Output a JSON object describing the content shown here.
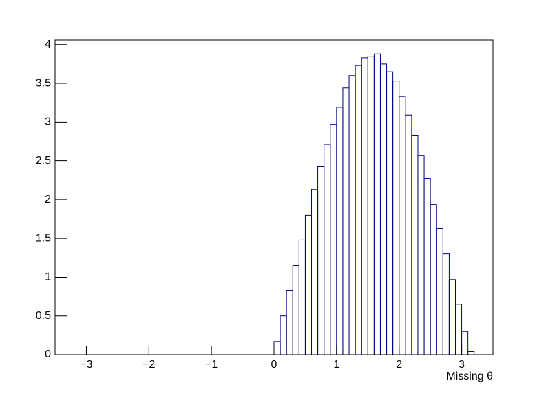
{
  "chart_data": {
    "type": "histogram",
    "xlabel": "Missing θ",
    "bins": [
      0,
      0.1,
      0.2,
      0.3,
      0.4,
      0.5,
      0.6,
      0.7,
      0.8,
      0.9,
      1.0,
      1.1,
      1.2,
      1.3,
      1.4,
      1.5,
      1.6,
      1.7,
      1.8,
      1.9,
      2.0,
      2.1,
      2.2,
      2.3,
      2.4,
      2.5,
      2.6,
      2.7,
      2.8,
      2.9,
      3.0,
      3.1,
      3.2
    ],
    "values": [
      0.17,
      0.5,
      0.83,
      1.15,
      1.48,
      1.8,
      2.13,
      2.43,
      2.71,
      2.97,
      3.19,
      3.44,
      3.6,
      3.73,
      3.83,
      3.85,
      3.88,
      3.75,
      3.65,
      3.53,
      3.33,
      3.09,
      2.83,
      2.57,
      2.27,
      1.94,
      1.63,
      1.3,
      0.97,
      0.65,
      0.3,
      0.04
    ],
    "color": "#000080",
    "xlim": [
      -3.5,
      3.5
    ],
    "xticks": [
      {
        "value": -3,
        "label": "−3"
      },
      {
        "value": -2,
        "label": "−2"
      },
      {
        "value": -1,
        "label": "−1"
      },
      0,
      1,
      2,
      3
    ],
    "ylim": [
      0,
      4.06
    ],
    "yticks": [
      0,
      0.5,
      1,
      1.5,
      2,
      2.5,
      3,
      3.5,
      4
    ],
    "grid": false
  }
}
